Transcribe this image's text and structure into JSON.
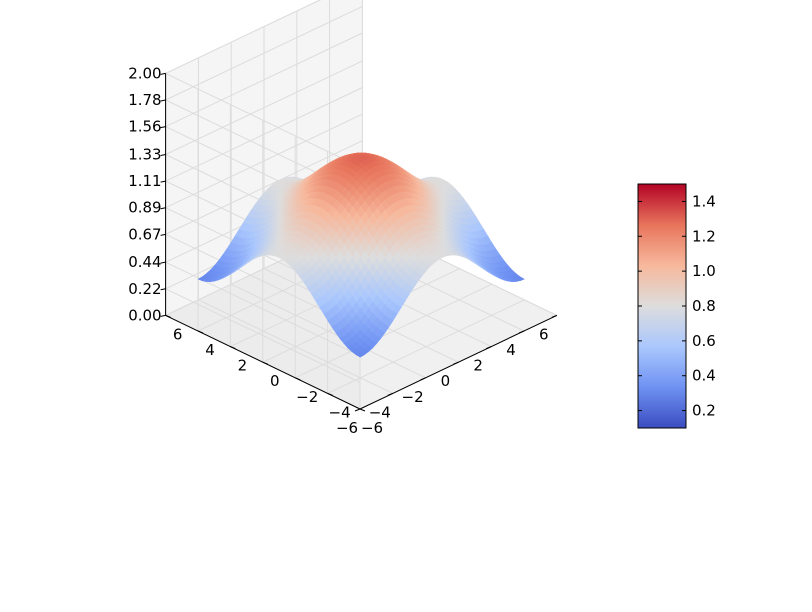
{
  "chart_data": {
    "type": "surface",
    "title": "",
    "xlabel": "",
    "ylabel": "",
    "zlabel": "",
    "colormap": "coolwarm",
    "colormap_colors": [
      "#3b4cc0",
      "#6f92f3",
      "#aac7fd",
      "#dddddd",
      "#f7b89c",
      "#e7745b",
      "#b40426"
    ],
    "pane_color": "#f2f2f2",
    "grid": true,
    "x_range": [
      -6,
      6
    ],
    "y_range": [
      -6,
      6
    ],
    "z_range": [
      0.0,
      2.0
    ],
    "x_ticks": [
      -6,
      -4,
      -2,
      0,
      2,
      4,
      6
    ],
    "y_ticks": [
      -6,
      -4,
      -2,
      0,
      2,
      4,
      6
    ],
    "x_tick_labels": [
      "−6",
      "−4",
      "−2",
      "0",
      "2",
      "4",
      "6"
    ],
    "y_tick_labels": [
      "−6",
      "−4",
      "−2",
      "0",
      "2",
      "4",
      "6"
    ],
    "z_ticks": [
      0.0,
      0.22,
      0.44,
      0.67,
      0.89,
      1.11,
      1.33,
      1.56,
      1.78,
      2.0
    ],
    "z_tick_labels": [
      "0.00",
      "0.22",
      "0.44",
      "0.67",
      "0.89",
      "1.11",
      "1.33",
      "1.56",
      "1.78",
      "2.00"
    ],
    "surface": {
      "x_range": [
        -5,
        5
      ],
      "y_range": [
        -5,
        5
      ],
      "min_value": 0.1,
      "max_value": 1.5
    },
    "colorbar": {
      "range": [
        0.1,
        1.5
      ],
      "ticks": [
        0.2,
        0.4,
        0.6,
        0.8,
        1.0,
        1.2,
        1.4
      ],
      "tick_labels": [
        "0.2",
        "0.4",
        "0.6",
        "0.8",
        "1.0",
        "1.2",
        "1.4"
      ]
    }
  }
}
